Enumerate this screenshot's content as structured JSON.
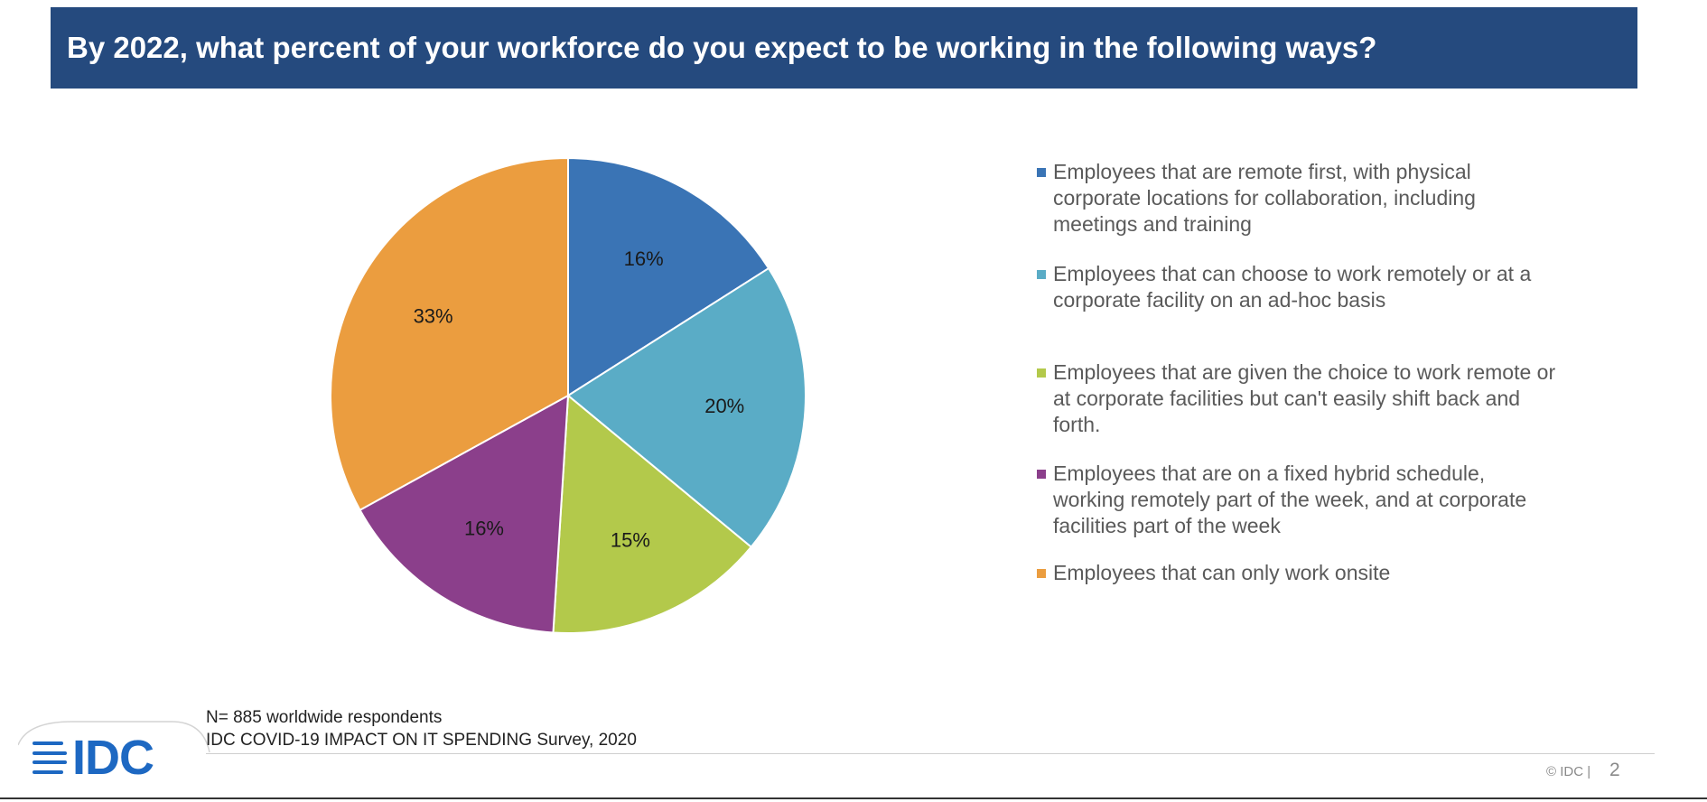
{
  "header": {
    "title": "By 2022, what percent of your workforce do you expect to be working in the following ways?"
  },
  "chart_data": {
    "type": "pie",
    "title": "",
    "start_angle_deg": 0,
    "direction": "clockwise",
    "legend_position": "right",
    "slices": [
      {
        "label": "Employees that are remote first, with physical corporate locations for collaboration, including meetings and training",
        "value": 16,
        "value_label": "16%",
        "color": "#3a74b5"
      },
      {
        "label": "Employees that can choose to work remotely or at a corporate facility on an ad-hoc basis",
        "value": 20,
        "value_label": "20%",
        "color": "#5aacc6"
      },
      {
        "label": "Employees that are given the choice to work remote or at corporate facilities but can't easily shift back and forth.",
        "value": 15,
        "value_label": "15%",
        "color": "#b3c94b"
      },
      {
        "label": "Employees that are on a fixed hybrid schedule, working remotely part of the week, and at corporate facilities part of the week",
        "value": 16,
        "value_label": "16%",
        "color": "#8b3f8b"
      },
      {
        "label": "Employees that can only work onsite",
        "value": 33,
        "value_label": "33%",
        "color": "#eb9d3f"
      }
    ]
  },
  "footer": {
    "note_line1": "N= 885 worldwide respondents",
    "note_line2": "IDC COVID-19 IMPACT ON IT SPENDING Survey, 2020",
    "logo_text": "IDC",
    "copyright": "© IDC |",
    "page_number": "2"
  },
  "colors": {
    "title_bar": "#254a7e",
    "brand_blue": "#1d68c2"
  }
}
